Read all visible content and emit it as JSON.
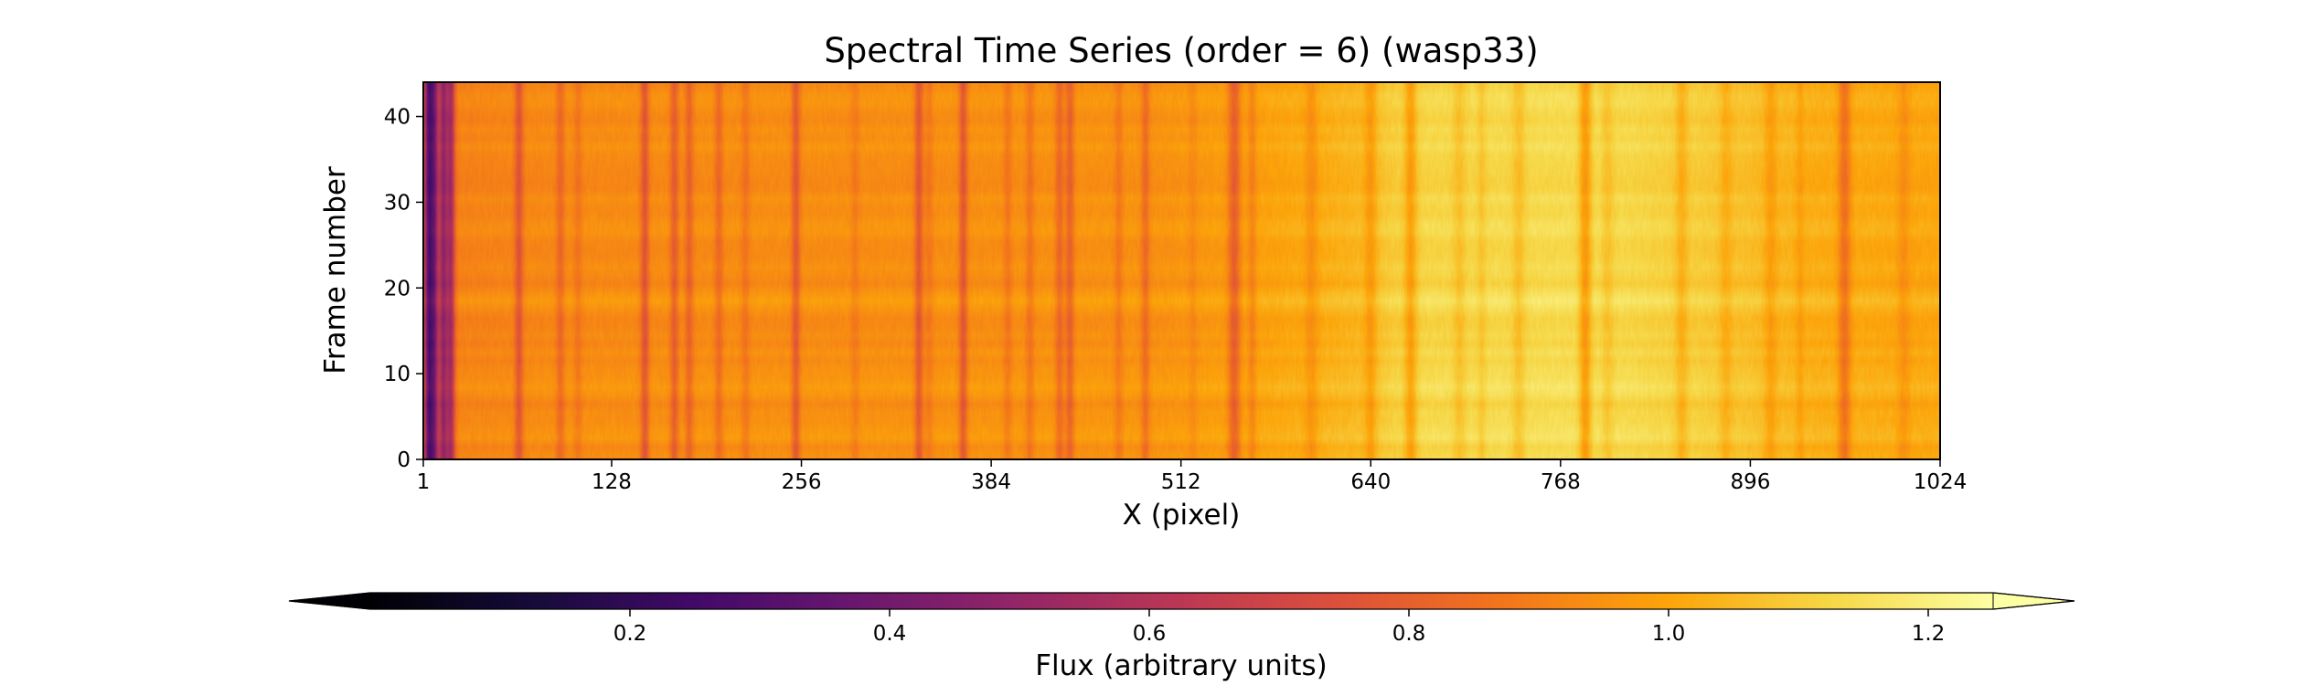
{
  "chart_data": {
    "type": "heatmap",
    "title": "Spectral Time Series (order = 6) (wasp33)",
    "xlabel": "X (pixel)",
    "ylabel": "Frame number",
    "xlim": [
      1,
      1024
    ],
    "ylim": [
      0,
      44
    ],
    "x_ticks": [
      {
        "value": 1,
        "label": "1"
      },
      {
        "value": 128,
        "label": "128"
      },
      {
        "value": 256,
        "label": "256"
      },
      {
        "value": 384,
        "label": "384"
      },
      {
        "value": 512,
        "label": "512"
      },
      {
        "value": 640,
        "label": "640"
      },
      {
        "value": 768,
        "label": "768"
      },
      {
        "value": 896,
        "label": "896"
      },
      {
        "value": 1024,
        "label": "1024"
      }
    ],
    "y_ticks": [
      {
        "value": 0,
        "label": "0"
      },
      {
        "value": 10,
        "label": "10"
      },
      {
        "value": 20,
        "label": "20"
      },
      {
        "value": 30,
        "label": "30"
      },
      {
        "value": 40,
        "label": "40"
      }
    ],
    "n_frames": 44,
    "continuum": [
      {
        "x": 1,
        "flux": 0.9
      },
      {
        "x": 100,
        "flux": 0.93
      },
      {
        "x": 300,
        "flux": 0.94
      },
      {
        "x": 500,
        "flux": 0.95
      },
      {
        "x": 580,
        "flux": 1.0
      },
      {
        "x": 630,
        "flux": 1.04
      },
      {
        "x": 665,
        "flux": 1.12
      },
      {
        "x": 720,
        "flux": 1.13
      },
      {
        "x": 790,
        "flux": 1.14
      },
      {
        "x": 860,
        "flux": 1.1
      },
      {
        "x": 940,
        "flux": 1.02
      },
      {
        "x": 1024,
        "flux": 1.0
      }
    ],
    "absorption_lines": [
      {
        "x": 4,
        "depth": 0.55,
        "width": 2
      },
      {
        "x": 8,
        "depth": 0.45,
        "width": 2
      },
      {
        "x": 14,
        "depth": 0.4,
        "width": 2
      },
      {
        "x": 19,
        "depth": 0.35,
        "width": 2
      },
      {
        "x": 65,
        "depth": 0.16,
        "width": 2
      },
      {
        "x": 93,
        "depth": 0.1,
        "width": 2
      },
      {
        "x": 105,
        "depth": 0.06,
        "width": 2
      },
      {
        "x": 150,
        "depth": 0.17,
        "width": 2
      },
      {
        "x": 170,
        "depth": 0.14,
        "width": 2
      },
      {
        "x": 180,
        "depth": 0.12,
        "width": 2
      },
      {
        "x": 200,
        "depth": 0.1,
        "width": 2
      },
      {
        "x": 218,
        "depth": 0.07,
        "width": 2
      },
      {
        "x": 252,
        "depth": 0.16,
        "width": 2
      },
      {
        "x": 292,
        "depth": 0.05,
        "width": 2
      },
      {
        "x": 335,
        "depth": 0.17,
        "width": 2
      },
      {
        "x": 342,
        "depth": 0.06,
        "width": 2
      },
      {
        "x": 365,
        "depth": 0.17,
        "width": 2
      },
      {
        "x": 395,
        "depth": 0.07,
        "width": 2
      },
      {
        "x": 410,
        "depth": 0.08,
        "width": 2
      },
      {
        "x": 430,
        "depth": 0.12,
        "width": 2
      },
      {
        "x": 437,
        "depth": 0.14,
        "width": 2
      },
      {
        "x": 470,
        "depth": 0.07,
        "width": 2
      },
      {
        "x": 488,
        "depth": 0.11,
        "width": 2
      },
      {
        "x": 520,
        "depth": 0.04,
        "width": 2
      },
      {
        "x": 548,
        "depth": 0.18,
        "width": 3
      },
      {
        "x": 560,
        "depth": 0.08,
        "width": 2
      },
      {
        "x": 600,
        "depth": 0.07,
        "width": 3
      },
      {
        "x": 640,
        "depth": 0.09,
        "width": 3
      },
      {
        "x": 667,
        "depth": 0.14,
        "width": 3
      },
      {
        "x": 700,
        "depth": 0.06,
        "width": 3
      },
      {
        "x": 715,
        "depth": 0.05,
        "width": 2
      },
      {
        "x": 740,
        "depth": 0.07,
        "width": 3
      },
      {
        "x": 785,
        "depth": 0.17,
        "width": 3
      },
      {
        "x": 800,
        "depth": 0.06,
        "width": 3
      },
      {
        "x": 850,
        "depth": 0.08,
        "width": 3
      },
      {
        "x": 880,
        "depth": 0.06,
        "width": 3
      },
      {
        "x": 910,
        "depth": 0.07,
        "width": 3
      },
      {
        "x": 930,
        "depth": 0.05,
        "width": 2
      },
      {
        "x": 960,
        "depth": 0.16,
        "width": 3
      },
      {
        "x": 1000,
        "depth": 0.06,
        "width": 3
      }
    ],
    "colorbar": {
      "label": "Flux (arbitrary units)",
      "colormap": "inferno",
      "range": [
        0.0,
        1.25
      ],
      "ticks": [
        {
          "value": 0.2,
          "label": "0.2"
        },
        {
          "value": 0.4,
          "label": "0.4"
        },
        {
          "value": 0.6,
          "label": "0.6"
        },
        {
          "value": 0.8,
          "label": "0.8"
        },
        {
          "value": 1.0,
          "label": "1.0"
        },
        {
          "value": 1.2,
          "label": "1.2"
        }
      ],
      "extend": "both",
      "min_extend_color": "#000004",
      "max_extend_color": "#fcffa4"
    }
  }
}
